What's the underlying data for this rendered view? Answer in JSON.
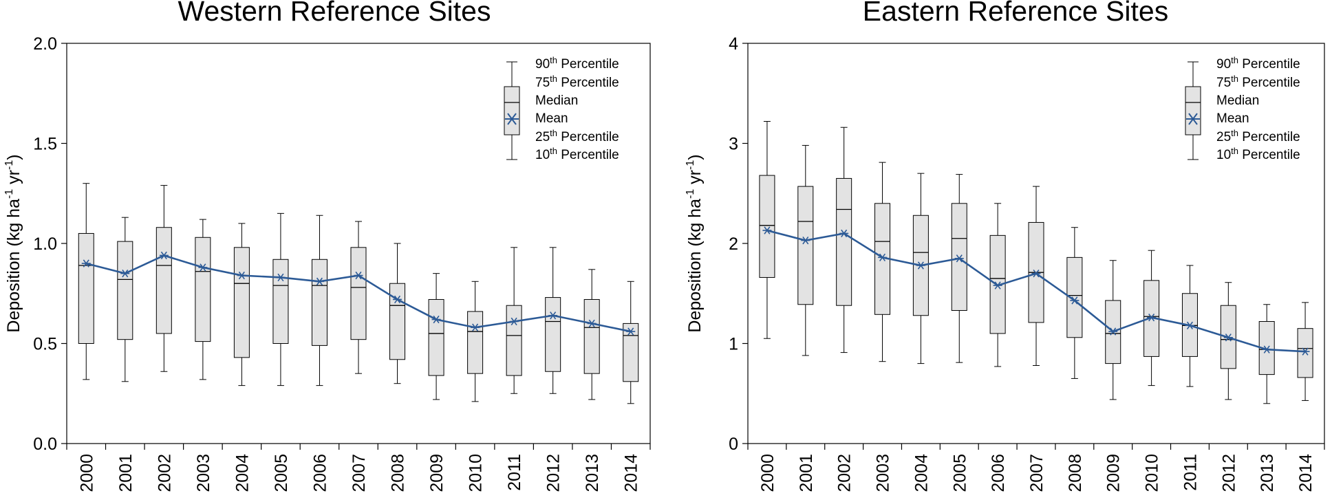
{
  "chart_data": [
    {
      "type": "box",
      "title": "Western Reference Sites",
      "xlabel": "",
      "ylabel": "Deposition (kg ha -1 yr -1)",
      "ylim": [
        0,
        2.0
      ],
      "yticks": [
        "0.0",
        "0.5",
        "1.0",
        "1.5",
        "2.0"
      ],
      "grid": false,
      "legend_position": "top-right",
      "series_color": "#2c5a96",
      "categories": [
        "2000",
        "2001",
        "2002",
        "2003",
        "2004",
        "2005",
        "2006",
        "2007",
        "2008",
        "2009",
        "2010",
        "2011",
        "2012",
        "2013",
        "2014"
      ],
      "p10": [
        0.32,
        0.31,
        0.36,
        0.32,
        0.29,
        0.29,
        0.29,
        0.35,
        0.3,
        0.22,
        0.21,
        0.25,
        0.25,
        0.22,
        0.2
      ],
      "p25": [
        0.5,
        0.52,
        0.55,
        0.51,
        0.43,
        0.5,
        0.49,
        0.52,
        0.42,
        0.34,
        0.35,
        0.34,
        0.36,
        0.35,
        0.31
      ],
      "median": [
        0.89,
        0.82,
        0.89,
        0.86,
        0.8,
        0.79,
        0.79,
        0.78,
        0.69,
        0.55,
        0.56,
        0.54,
        0.61,
        0.58,
        0.54
      ],
      "mean": [
        0.9,
        0.85,
        0.94,
        0.88,
        0.84,
        0.83,
        0.81,
        0.84,
        0.72,
        0.62,
        0.58,
        0.61,
        0.64,
        0.6,
        0.56
      ],
      "p75": [
        1.05,
        1.01,
        1.08,
        1.03,
        0.98,
        0.92,
        0.92,
        0.98,
        0.8,
        0.72,
        0.66,
        0.69,
        0.73,
        0.72,
        0.6
      ],
      "p90": [
        1.3,
        1.13,
        1.29,
        1.12,
        1.1,
        1.15,
        1.14,
        1.11,
        1.0,
        0.85,
        0.81,
        0.98,
        0.98,
        0.87,
        0.81
      ]
    },
    {
      "type": "box",
      "title": "Eastern Reference Sites",
      "xlabel": "",
      "ylabel": "Deposition (kg ha -1 yr -1)",
      "ylim": [
        0,
        4
      ],
      "yticks": [
        "0",
        "1",
        "2",
        "3",
        "4"
      ],
      "grid": false,
      "legend_position": "top-right",
      "series_color": "#2c5a96",
      "categories": [
        "2000",
        "2001",
        "2002",
        "2003",
        "2004",
        "2005",
        "2006",
        "2007",
        "2008",
        "2009",
        "2010",
        "2011",
        "2012",
        "2013",
        "2014"
      ],
      "p10": [
        1.05,
        0.88,
        0.91,
        0.82,
        0.8,
        0.81,
        0.77,
        0.78,
        0.65,
        0.44,
        0.58,
        0.57,
        0.44,
        0.4,
        0.43
      ],
      "p25": [
        1.66,
        1.39,
        1.38,
        1.29,
        1.28,
        1.33,
        1.1,
        1.21,
        1.06,
        0.8,
        0.87,
        0.87,
        0.75,
        0.69,
        0.66
      ],
      "median": [
        2.18,
        2.22,
        2.34,
        2.02,
        1.91,
        2.05,
        1.65,
        1.71,
        1.48,
        1.1,
        1.27,
        1.18,
        1.04,
        0.94,
        0.95
      ],
      "mean": [
        2.13,
        2.03,
        2.1,
        1.86,
        1.78,
        1.85,
        1.58,
        1.7,
        1.43,
        1.12,
        1.26,
        1.18,
        1.06,
        0.94,
        0.92
      ],
      "p75": [
        2.68,
        2.57,
        2.65,
        2.4,
        2.28,
        2.4,
        2.08,
        2.21,
        1.86,
        1.43,
        1.63,
        1.5,
        1.38,
        1.22,
        1.15
      ],
      "p90": [
        3.22,
        2.98,
        3.16,
        2.81,
        2.7,
        2.69,
        2.4,
        2.57,
        2.16,
        1.83,
        1.93,
        1.78,
        1.61,
        1.39,
        1.41
      ]
    }
  ],
  "legend": {
    "p90_label": "90",
    "p90_sup": "th",
    "p90_rest": " Percentile",
    "p75_label": "75",
    "p75_sup": "th",
    "p75_rest": " Percentile",
    "median_label": "Median",
    "mean_label": "Mean",
    "p25_label": "25",
    "p25_sup": "th",
    "p25_rest": " Percentile",
    "p10_label": "10",
    "p10_sup": "th",
    "p10_rest": " Percentile"
  },
  "ylabel_parts": {
    "main": "Deposition (kg ha",
    "sup1": "-1",
    "mid": " yr",
    "sup2": "-1",
    "end": ")"
  }
}
